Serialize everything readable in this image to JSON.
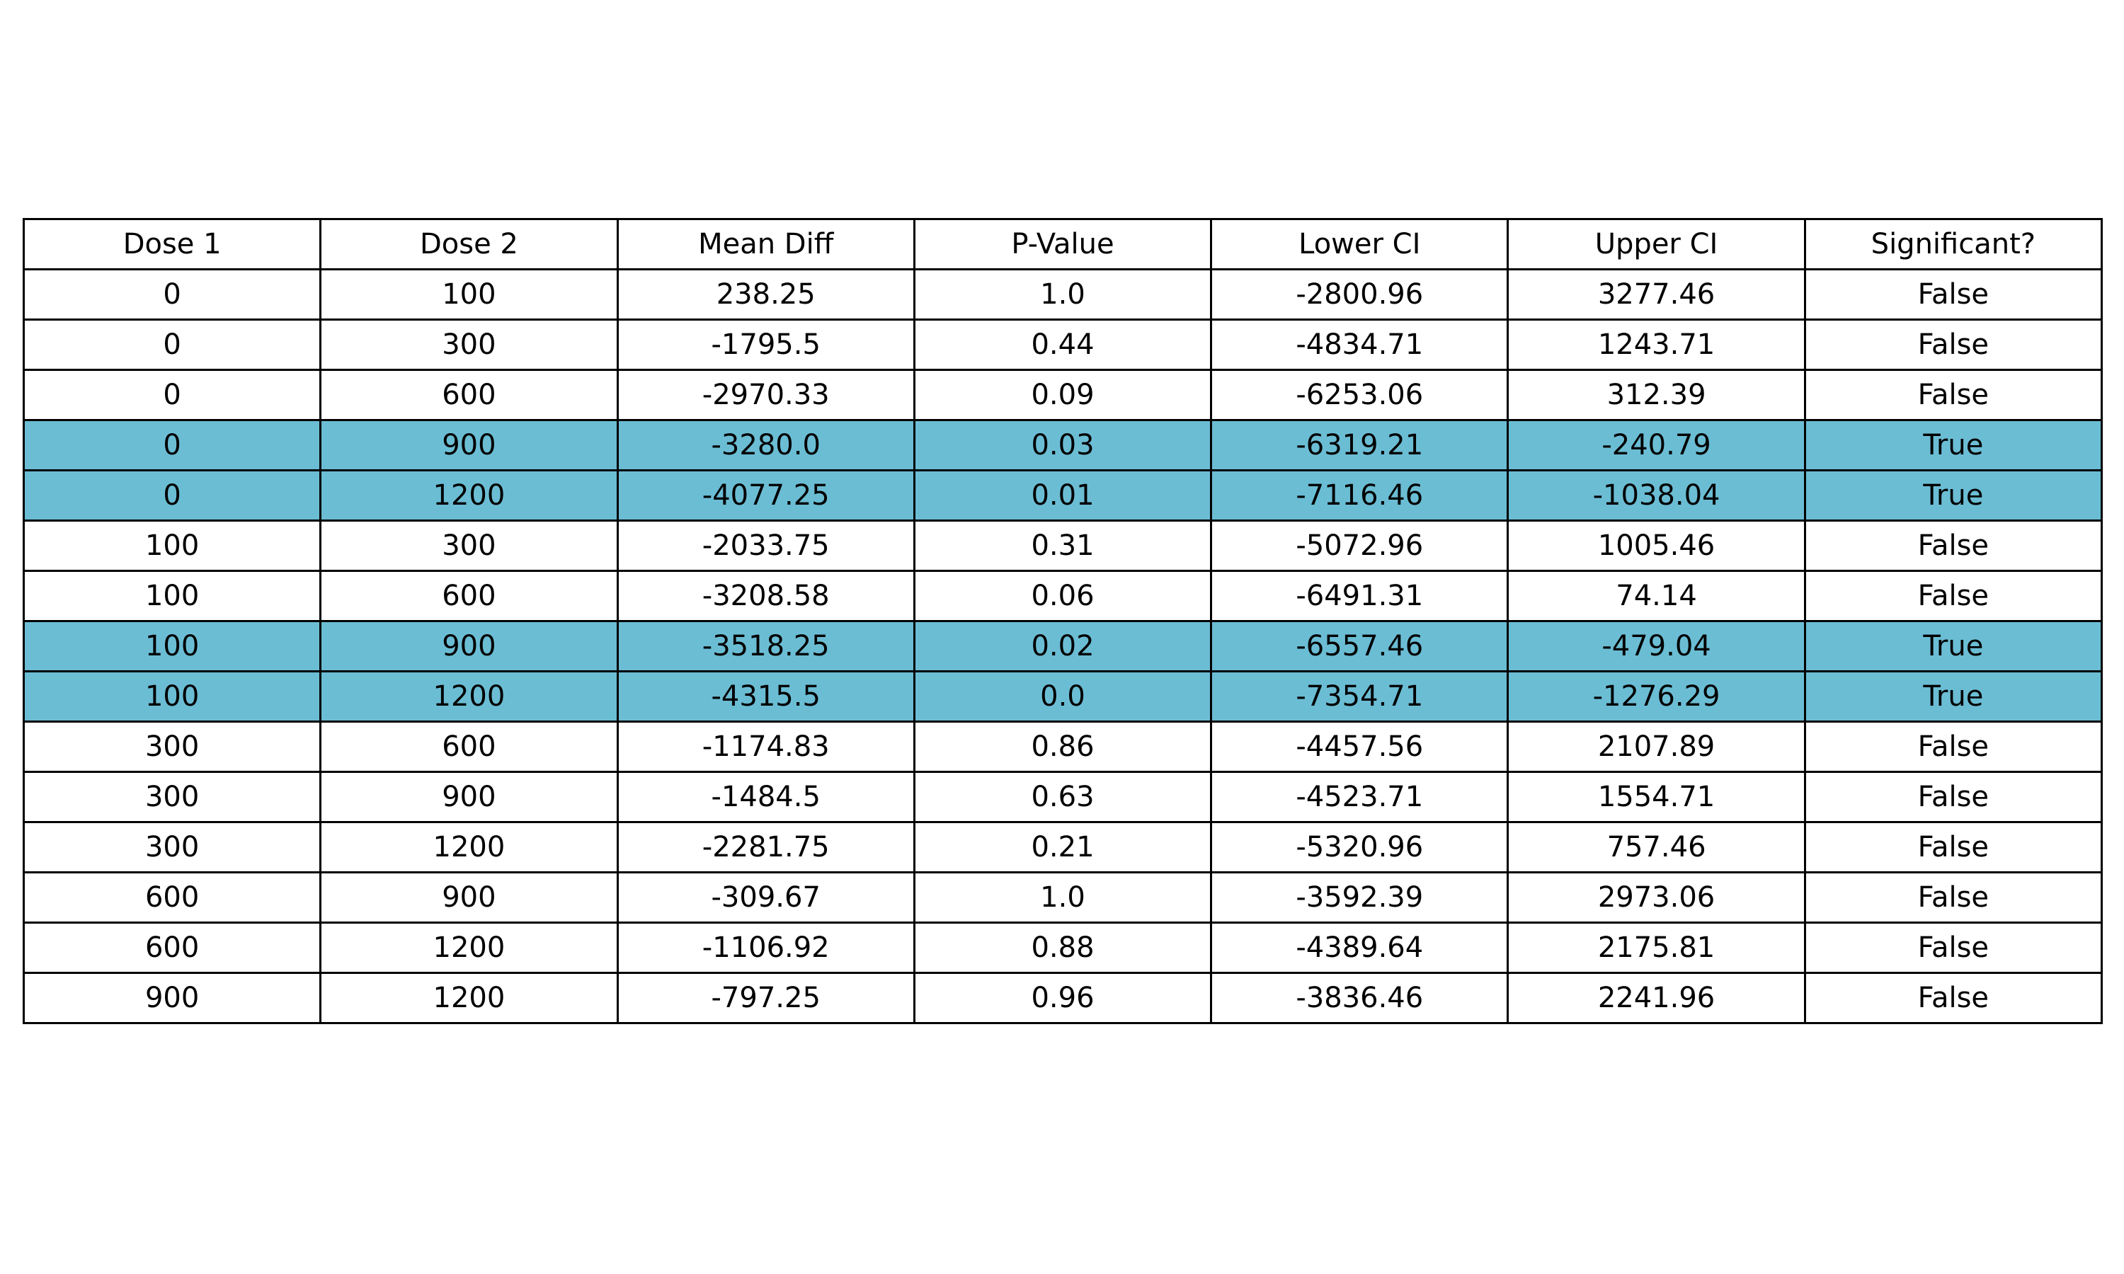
{
  "chart_data": {
    "type": "table",
    "highlight_color": "#6bbdd4",
    "columns": [
      "Dose 1",
      "Dose 2",
      "Mean Diff",
      "P-Value",
      "Lower CI",
      "Upper CI",
      "Significant?"
    ],
    "rows": [
      [
        "0",
        "100",
        "238.25",
        "1.0",
        "-2800.96",
        "3277.46",
        "False"
      ],
      [
        "0",
        "300",
        "-1795.5",
        "0.44",
        "-4834.71",
        "1243.71",
        "False"
      ],
      [
        "0",
        "600",
        "-2970.33",
        "0.09",
        "-6253.06",
        "312.39",
        "False"
      ],
      [
        "0",
        "900",
        "-3280.0",
        "0.03",
        "-6319.21",
        "-240.79",
        "True"
      ],
      [
        "0",
        "1200",
        "-4077.25",
        "0.01",
        "-7116.46",
        "-1038.04",
        "True"
      ],
      [
        "100",
        "300",
        "-2033.75",
        "0.31",
        "-5072.96",
        "1005.46",
        "False"
      ],
      [
        "100",
        "600",
        "-3208.58",
        "0.06",
        "-6491.31",
        "74.14",
        "False"
      ],
      [
        "100",
        "900",
        "-3518.25",
        "0.02",
        "-6557.46",
        "-479.04",
        "True"
      ],
      [
        "100",
        "1200",
        "-4315.5",
        "0.0",
        "-7354.71",
        "-1276.29",
        "True"
      ],
      [
        "300",
        "600",
        "-1174.83",
        "0.86",
        "-4457.56",
        "2107.89",
        "False"
      ],
      [
        "300",
        "900",
        "-1484.5",
        "0.63",
        "-4523.71",
        "1554.71",
        "False"
      ],
      [
        "300",
        "1200",
        "-2281.75",
        "0.21",
        "-5320.96",
        "757.46",
        "False"
      ],
      [
        "600",
        "900",
        "-309.67",
        "1.0",
        "-3592.39",
        "2973.06",
        "False"
      ],
      [
        "600",
        "1200",
        "-1106.92",
        "0.88",
        "-4389.64",
        "2175.81",
        "False"
      ],
      [
        "900",
        "1200",
        "-797.25",
        "0.96",
        "-3836.46",
        "2241.96",
        "False"
      ]
    ]
  }
}
